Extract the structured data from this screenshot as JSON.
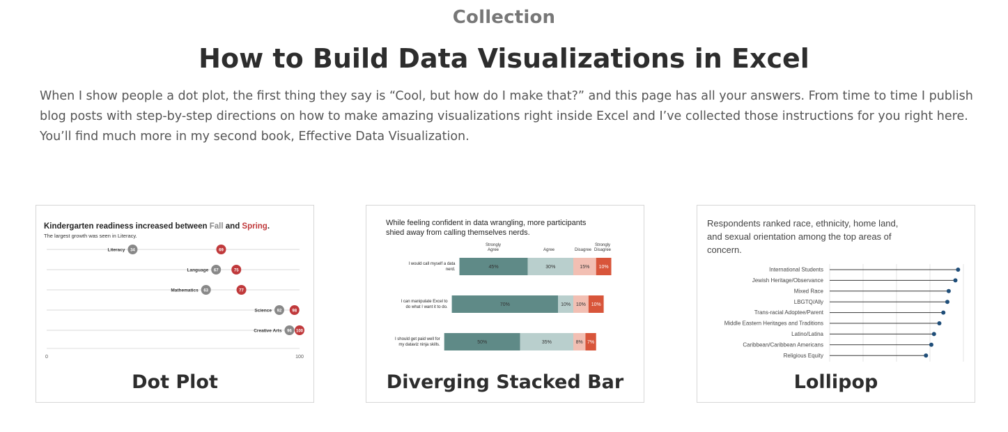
{
  "header": {
    "kicker": "Collection",
    "title": "How to Build Data Visualizations in Excel",
    "intro": "When I show people a dot plot, the first thing they say is “Cool, but how do I make that?” and this page has all your answers. From time to time I publish blog posts with step-by-step directions on how to make amazing visualizations right inside Excel and I’ve collected those instructions for you right here. You’ll find much more in my second book, Effective Data Visualization."
  },
  "cards": [
    {
      "label": "Dot Plot",
      "thumb": {
        "title_pre": "Kindergarten readiness increased between ",
        "title_fall": "Fall",
        "title_and": " and ",
        "title_spring": "Spring",
        "title_end": ".",
        "subtitle": "The largest growth was seen in Literacy.",
        "colors": {
          "fall": "#888888",
          "spring": "#c0393b"
        },
        "rows": [
          {
            "label": "Literacy",
            "fall": "34",
            "spring": "69"
          },
          {
            "label": "Language",
            "fall": "67",
            "spring": "75"
          },
          {
            "label": "Mathematics",
            "fall": "63",
            "spring": "77"
          },
          {
            "label": "Science",
            "fall": "92",
            "spring": "98"
          },
          {
            "label": "Creative Arts",
            "fall": "96",
            "spring": "100"
          }
        ],
        "axis_min": "0",
        "axis_max": "100"
      }
    },
    {
      "label": "Diverging Stacked Bar",
      "thumb": {
        "title_line1": "While feeling confident in data wrangling, more participants",
        "title_line2": "shied away from calling themselves nerds.",
        "legend": [
          "Strongly Agree",
          "Agree",
          "Disagree",
          "Strongly Disagree"
        ],
        "colors": [
          "#5f8a87",
          "#b9cfcd",
          "#f2bfb3",
          "#d8553a"
        ],
        "rows": [
          {
            "label_line1": "I would call myself a data",
            "label_line2": "nerd.",
            "values": [
              "45%",
              "30%",
              "15%",
              "10%"
            ]
          },
          {
            "label_line1": "I can manipulate Excel to",
            "label_line2": "do what I want it to do.",
            "values": [
              "70%",
              "10%",
              "10%",
              "10%"
            ]
          },
          {
            "label_line1": "I should get paid well for",
            "label_line2": "my dataviz ninja skills.",
            "values": [
              "50%",
              "35%",
              "8%",
              "7%"
            ]
          }
        ]
      }
    },
    {
      "label": "Lollipop",
      "thumb": {
        "title_line1": "Respondents ranked race, ethnicity, home land,",
        "title_line2": "and sexual orientation among the top areas of",
        "title_line3": "concern.",
        "color": "#1f4e79",
        "items": [
          {
            "label": "International Students",
            "value": 0.96
          },
          {
            "label": "Jewish Heritage/Observance",
            "value": 0.94
          },
          {
            "label": "Mixed Race",
            "value": 0.89
          },
          {
            "label": "LBGTQ/Ally",
            "value": 0.88
          },
          {
            "label": "Trans-racial Adoptee/Parent",
            "value": 0.85
          },
          {
            "label": "Middle Eastern Heritages and Traditions",
            "value": 0.82
          },
          {
            "label": "Latino/Latina",
            "value": 0.78
          },
          {
            "label": "Caribbean/Caribbean Americans",
            "value": 0.76
          },
          {
            "label": "Religious Equity",
            "value": 0.72
          }
        ]
      }
    }
  ]
}
